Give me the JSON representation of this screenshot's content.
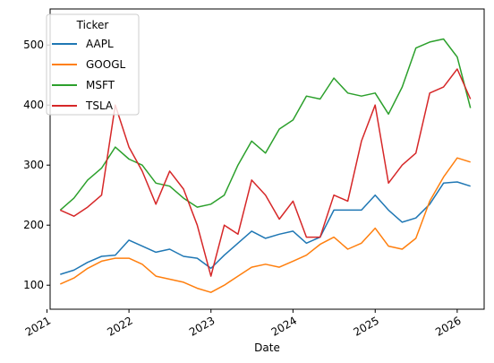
{
  "chart_data": {
    "type": "line",
    "title": "",
    "xlabel": "Date",
    "ylabel": "",
    "legend": {
      "title": "Ticker",
      "placement": "top-left"
    },
    "grid": false,
    "xlim": [
      "2021-01-15",
      "2026-05-01"
    ],
    "ylim": [
      60,
      560
    ],
    "x_ticks": [
      "2021",
      "2022",
      "2023",
      "2024",
      "2025",
      "2026"
    ],
    "y_ticks": [
      100,
      200,
      300,
      400,
      500
    ],
    "colors": {
      "AAPL": "#1f77b4",
      "GOOGL": "#ff7f0e",
      "MSFT": "#2ca02c",
      "TSLA": "#d62728"
    },
    "x": [
      "2021-03-01",
      "2021-05-01",
      "2021-07-01",
      "2021-09-01",
      "2021-11-01",
      "2022-01-01",
      "2022-03-01",
      "2022-05-01",
      "2022-07-01",
      "2022-09-01",
      "2022-11-01",
      "2023-01-01",
      "2023-03-01",
      "2023-05-01",
      "2023-07-01",
      "2023-09-01",
      "2023-11-01",
      "2024-01-01",
      "2024-03-01",
      "2024-05-01",
      "2024-07-01",
      "2024-09-01",
      "2024-11-01",
      "2025-01-01",
      "2025-03-01",
      "2025-05-01",
      "2025-07-01",
      "2025-09-01",
      "2025-11-01",
      "2026-01-01",
      "2026-03-01"
    ],
    "series": [
      {
        "name": "AAPL",
        "values": [
          118,
          125,
          138,
          148,
          150,
          175,
          165,
          155,
          160,
          148,
          145,
          128,
          150,
          170,
          190,
          178,
          185,
          190,
          170,
          180,
          225,
          225,
          225,
          250,
          225,
          205,
          212,
          235,
          270,
          272,
          265
        ]
      },
      {
        "name": "GOOGL",
        "values": [
          102,
          112,
          128,
          140,
          145,
          145,
          135,
          115,
          110,
          105,
          95,
          88,
          100,
          115,
          130,
          135,
          130,
          140,
          150,
          168,
          180,
          160,
          170,
          195,
          165,
          160,
          178,
          240,
          280,
          312,
          305
        ]
      },
      {
        "name": "MSFT",
        "values": [
          225,
          245,
          275,
          295,
          330,
          310,
          300,
          270,
          265,
          245,
          230,
          235,
          250,
          300,
          340,
          320,
          360,
          375,
          415,
          410,
          445,
          420,
          415,
          420,
          385,
          430,
          495,
          505,
          510,
          480,
          395
        ]
      },
      {
        "name": "TSLA",
        "values": [
          225,
          215,
          230,
          250,
          400,
          330,
          290,
          235,
          290,
          260,
          200,
          115,
          200,
          185,
          275,
          250,
          210,
          240,
          180,
          180,
          250,
          240,
          340,
          400,
          270,
          300,
          320,
          420,
          430,
          460,
          410
        ]
      }
    ]
  }
}
